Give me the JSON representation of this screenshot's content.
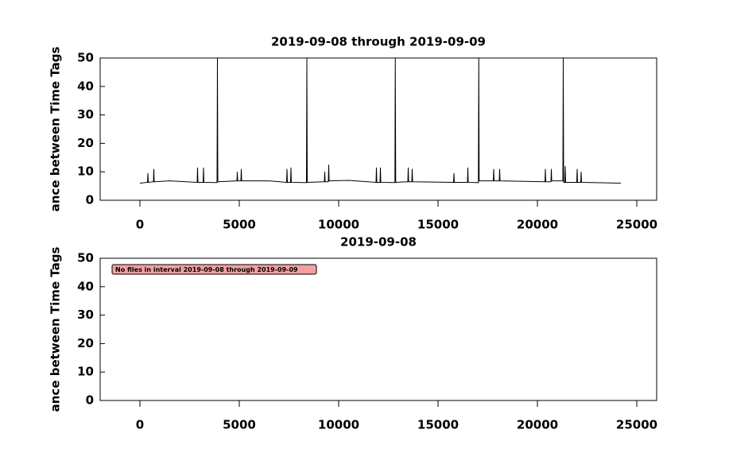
{
  "chart_data": [
    {
      "type": "line",
      "title": "2019-09-08 through 2019-09-09",
      "ylabel": "ance between Time Tags",
      "xlim": [
        -2000,
        26000
      ],
      "xticks": [
        0,
        5000,
        10000,
        15000,
        20000,
        25000
      ],
      "ylim": [
        0,
        50
      ],
      "yticks": [
        0,
        10,
        20,
        30,
        40,
        50
      ],
      "series": [
        {
          "color": "#000000",
          "x": [
            0,
            380,
            400,
            420,
            680,
            700,
            720,
            1500,
            2880,
            2900,
            2920,
            3180,
            3200,
            3220,
            3880,
            3900,
            3920,
            4880,
            4900,
            4920,
            5080,
            5100,
            5120,
            6500,
            7380,
            7400,
            7420,
            7580,
            7600,
            7620,
            8380,
            8400,
            8420,
            9280,
            9300,
            9320,
            9480,
            9500,
            9520,
            10500,
            11880,
            11900,
            11920,
            12080,
            12100,
            12120,
            12830,
            12850,
            12870,
            13480,
            13500,
            13520,
            13680,
            13700,
            13720,
            15780,
            15800,
            15820,
            16480,
            16500,
            16520,
            17030,
            17050,
            17070,
            17780,
            17800,
            17820,
            18080,
            18100,
            18120,
            20380,
            20400,
            20420,
            20680,
            20700,
            20720,
            21280,
            21300,
            21320,
            21380,
            21400,
            21420,
            21980,
            22000,
            22020,
            22180,
            22200,
            22220,
            24200
          ],
          "values": [
            6,
            6.3,
            9.5,
            6.3,
            6.5,
            11,
            6.5,
            6.8,
            6.3,
            11.5,
            6.3,
            6.3,
            11.5,
            6.3,
            6.2,
            50,
            6.5,
            6.8,
            10,
            6.8,
            6.8,
            11,
            6.8,
            6.8,
            6.3,
            11,
            6.3,
            6.3,
            11.5,
            6.3,
            6.2,
            50,
            6.3,
            6.5,
            10,
            6.5,
            6.5,
            12.5,
            6.8,
            7,
            6.3,
            11.5,
            6.3,
            6.3,
            11.5,
            6.3,
            6.2,
            50,
            6.3,
            6.5,
            11.5,
            6.5,
            6.5,
            11,
            6.5,
            6.3,
            9.5,
            6.3,
            6.3,
            11.5,
            6.3,
            6.2,
            50,
            6.8,
            6.8,
            11,
            6.8,
            6.8,
            11,
            6.8,
            6.5,
            11,
            6.5,
            6.5,
            11,
            6.8,
            6.8,
            50,
            6.3,
            6.3,
            12,
            6.3,
            6.3,
            11,
            6.3,
            6.3,
            10,
            6.3,
            6
          ]
        }
      ]
    },
    {
      "type": "line",
      "title": "2019-09-08",
      "ylabel": "ance between Time Tags",
      "annotation": "No files in interval 2019-09-08 through 2019-09-09",
      "xlim": [
        -2000,
        26000
      ],
      "xticks": [
        0,
        5000,
        10000,
        15000,
        20000,
        25000
      ],
      "ylim": [
        0,
        50
      ],
      "yticks": [
        0,
        10,
        20,
        30,
        40,
        50
      ],
      "series": []
    }
  ]
}
